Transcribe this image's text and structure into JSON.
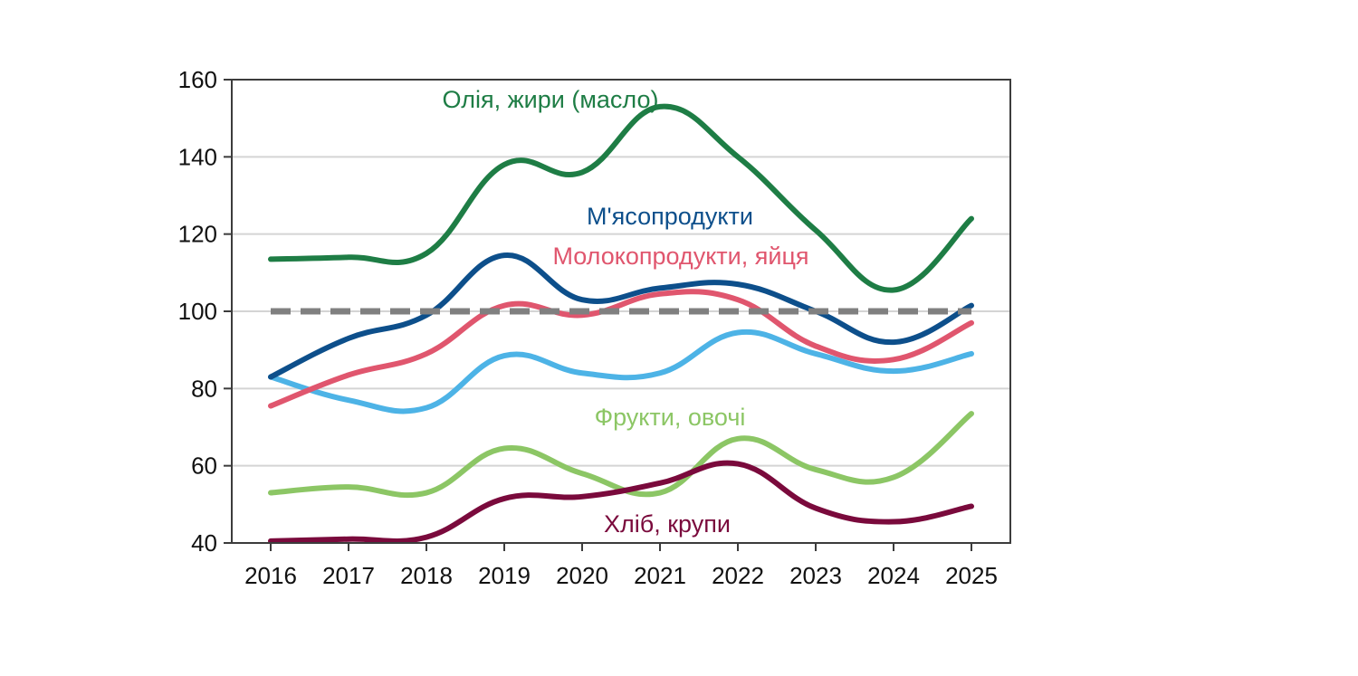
{
  "chart_data": {
    "type": "line",
    "title": "",
    "xlabel": "",
    "ylabel": "",
    "x": [
      "2016",
      "2017",
      "2018",
      "2019",
      "2020",
      "2021",
      "2022",
      "2023",
      "2024",
      "2025"
    ],
    "ylim": [
      40,
      160
    ],
    "yticks": [
      "40",
      "60",
      "80",
      "100",
      "120",
      "140",
      "160"
    ],
    "grid": true,
    "reference_line": {
      "value": 100,
      "style": "dashed",
      "color": "#808080"
    },
    "series": [
      {
        "name": "Олія, жири (масло)",
        "color": "#1e7d45",
        "values": [
          113.5,
          114,
          115,
          138,
          136,
          153,
          140,
          121,
          105.5,
          124
        ]
      },
      {
        "name": "М'ясопродукти",
        "color": "#0d4f8b",
        "values": [
          83,
          93,
          99,
          114.5,
          103,
          106,
          107,
          100,
          92,
          101.5
        ]
      },
      {
        "name": "Молокопродукти, яйця",
        "color": "#e0566e",
        "values": [
          75.5,
          83.5,
          89,
          101.5,
          99,
          104.5,
          103,
          91,
          87.5,
          97
        ]
      },
      {
        "name": "",
        "color": "#4db3e6",
        "values": [
          83,
          77,
          75,
          88.5,
          84,
          84,
          94.5,
          89,
          84.5,
          89
        ]
      },
      {
        "name": "Фрукти,  овочі",
        "color": "#8cc665",
        "values": [
          53,
          54.5,
          53,
          64.5,
          58,
          53,
          67,
          59,
          57,
          73.5
        ]
      },
      {
        "name": "Хліб, крупи",
        "color": "#7a0a3c",
        "values": [
          40.5,
          41,
          41.5,
          51.5,
          52,
          55.5,
          60.5,
          49,
          45.5,
          49.5
        ]
      }
    ]
  }
}
